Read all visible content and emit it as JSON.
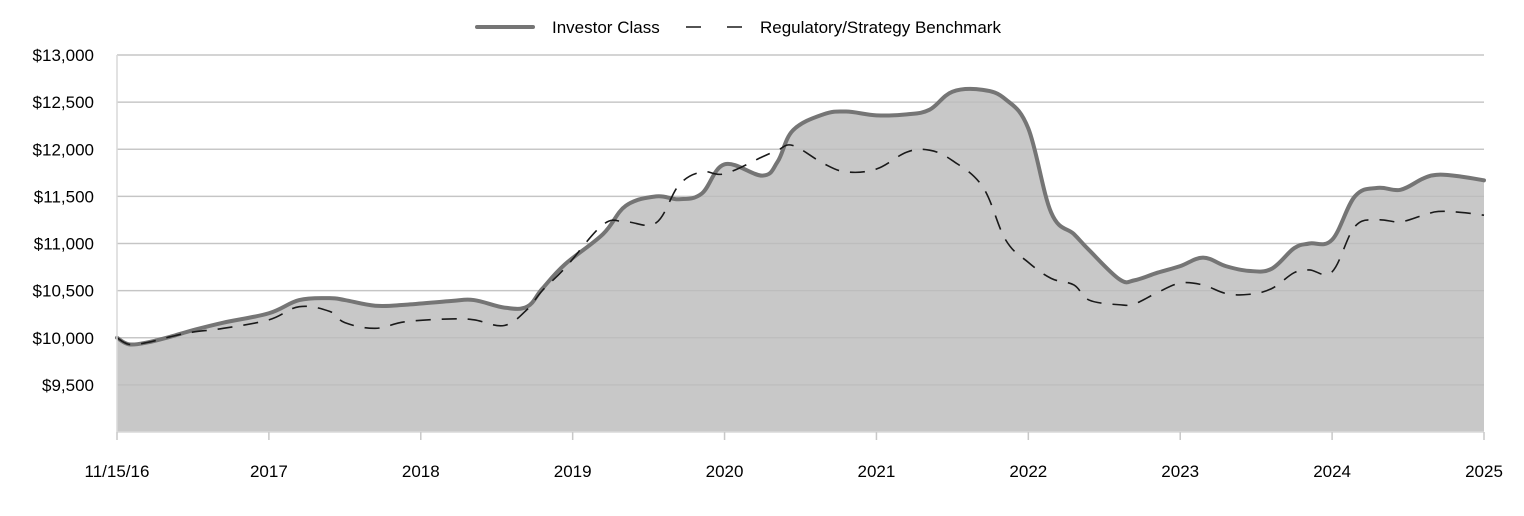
{
  "chart_data": {
    "type": "area",
    "title": "",
    "xlabel": "",
    "ylabel": "",
    "ylim": [
      9000,
      13000
    ],
    "y_ticks": [
      {
        "value": 9500,
        "label": "$9,500"
      },
      {
        "value": 10000,
        "label": "$10,000"
      },
      {
        "value": 10500,
        "label": "$10,500"
      },
      {
        "value": 11000,
        "label": "$11,000"
      },
      {
        "value": 11500,
        "label": "$11,500"
      },
      {
        "value": 12000,
        "label": "$12,000"
      },
      {
        "value": 12500,
        "label": "$12,500"
      },
      {
        "value": 13000,
        "label": "$13,000"
      }
    ],
    "x_ticks": [
      {
        "value": 2016.87,
        "label": "11/15/16"
      },
      {
        "value": 2017.87,
        "label": "2017"
      },
      {
        "value": 2018.87,
        "label": "2018"
      },
      {
        "value": 2019.87,
        "label": "2019"
      },
      {
        "value": 2020.87,
        "label": "2020"
      },
      {
        "value": 2021.87,
        "label": "2021"
      },
      {
        "value": 2022.87,
        "label": "2022"
      },
      {
        "value": 2023.87,
        "label": "2023"
      },
      {
        "value": 2024.87,
        "label": "2024"
      },
      {
        "value": 2025.87,
        "label": "2025"
      }
    ],
    "xlim": [
      2016.87,
      2025.87
    ],
    "grid": true,
    "legend_position": "top-center",
    "series": [
      {
        "name": "Investor Class",
        "style": "solid-area",
        "color": "#757575",
        "fill": "#c8c8c8",
        "x": [
          2016.87,
          2016.95,
          2017.07,
          2017.22,
          2017.37,
          2017.57,
          2017.87,
          2018.07,
          2018.27,
          2018.37,
          2018.57,
          2018.77,
          2019.07,
          2019.22,
          2019.42,
          2019.57,
          2019.67,
          2019.82,
          2020.07,
          2020.22,
          2020.42,
          2020.57,
          2020.72,
          2020.87,
          2021.12,
          2021.22,
          2021.32,
          2021.52,
          2021.67,
          2021.87,
          2022.07,
          2022.22,
          2022.37,
          2022.57,
          2022.72,
          2022.87,
          2023.02,
          2023.17,
          2023.27,
          2023.47,
          2023.57,
          2023.72,
          2023.87,
          2024.02,
          2024.17,
          2024.32,
          2024.47,
          2024.62,
          2024.72,
          2024.87,
          2025.02,
          2025.17,
          2025.32,
          2025.47,
          2025.57,
          2025.72,
          2025.87
        ],
        "values": [
          10000,
          9930,
          9950,
          10010,
          10080,
          10160,
          10260,
          10400,
          10420,
          10400,
          10340,
          10350,
          10390,
          10400,
          10320,
          10330,
          10520,
          10780,
          11100,
          11400,
          11500,
          11470,
          11530,
          11840,
          11720,
          11870,
          12200,
          12370,
          12400,
          12360,
          12370,
          12420,
          12610,
          12630,
          12530,
          12220,
          11330,
          11100,
          10930,
          10620,
          10610,
          10690,
          10760,
          10850,
          10760,
          10710,
          10730,
          10950,
          11000,
          11040,
          11500,
          11590,
          11570,
          11690,
          11730,
          11710,
          11670
        ]
      },
      {
        "name": "Regulatory/Strategy Benchmark",
        "style": "dashed",
        "color": "#1a1a1a",
        "x": [
          2016.87,
          2016.95,
          2017.07,
          2017.22,
          2017.37,
          2017.57,
          2017.87,
          2018.07,
          2018.27,
          2018.37,
          2018.57,
          2018.77,
          2019.07,
          2019.22,
          2019.42,
          2019.57,
          2019.67,
          2019.82,
          2020.07,
          2020.22,
          2020.42,
          2020.57,
          2020.72,
          2020.87,
          2021.12,
          2021.22,
          2021.32,
          2021.52,
          2021.67,
          2021.87,
          2022.07,
          2022.22,
          2022.37,
          2022.57,
          2022.72,
          2022.87,
          2023.02,
          2023.17,
          2023.27,
          2023.47,
          2023.57,
          2023.72,
          2023.87,
          2024.02,
          2024.17,
          2024.32,
          2024.47,
          2024.62,
          2024.72,
          2024.87,
          2025.02,
          2025.17,
          2025.32,
          2025.47,
          2025.57,
          2025.72,
          2025.87
        ],
        "values": [
          10000,
          9930,
          9950,
          10010,
          10060,
          10100,
          10190,
          10330,
          10280,
          10160,
          10100,
          10170,
          10200,
          10190,
          10130,
          10300,
          10500,
          10740,
          11200,
          11230,
          11220,
          11620,
          11760,
          11740,
          11920,
          11990,
          12040,
          11850,
          11760,
          11790,
          11970,
          11990,
          11880,
          11600,
          11040,
          10800,
          10630,
          10560,
          10400,
          10350,
          10360,
          10480,
          10580,
          10560,
          10470,
          10460,
          10520,
          10690,
          10720,
          10700,
          11180,
          11250,
          11230,
          11300,
          11340,
          11330,
          11300
        ]
      }
    ]
  }
}
